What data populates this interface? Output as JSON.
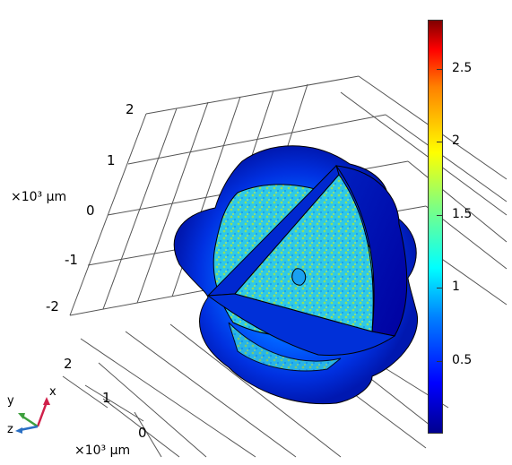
{
  "z_axis": {
    "ticks": [
      "2",
      "1",
      "0",
      "-1",
      "-2"
    ],
    "unit_label": "×10³ μm"
  },
  "x_axis": {
    "ticks": [
      "2",
      "1",
      "0"
    ],
    "unit_label": "×10³ μm"
  },
  "colorbar": {
    "ticks": [
      "2.5",
      "2",
      "1.5",
      "1",
      "0.5"
    ],
    "colors": [
      "#00008f",
      "#0000ff",
      "#0080ff",
      "#00ffff",
      "#80ff80",
      "#ffff00",
      "#ff8000",
      "#ff0000",
      "#800000"
    ]
  },
  "triad": {
    "y": "y",
    "x": "x",
    "z": "z",
    "colors": {
      "x": "#d0204a",
      "y": "#3ea03e",
      "z": "#2a6fc4"
    }
  }
}
